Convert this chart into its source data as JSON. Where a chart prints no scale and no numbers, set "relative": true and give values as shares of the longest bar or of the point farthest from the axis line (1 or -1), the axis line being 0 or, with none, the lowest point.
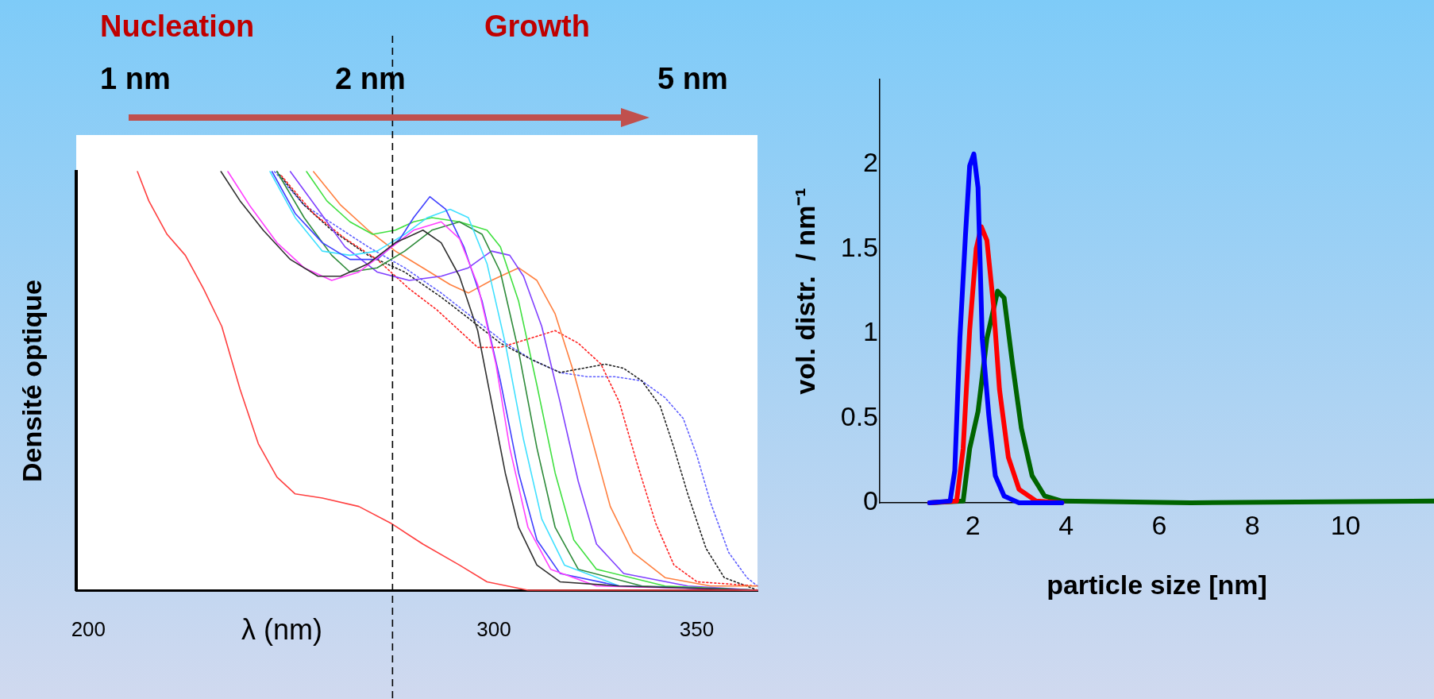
{
  "chart_data": [
    {
      "type": "line",
      "relative": true,
      "xlabel": "λ (nm)",
      "ylabel": "Densité optique",
      "xlim": [
        197,
        365
      ],
      "xticks": [
        200,
        300,
        350
      ],
      "grid": false,
      "legend": false,
      "marker": "none",
      "ref_lines": [
        {
          "axis": "x",
          "value": 275,
          "line_style": "dashed",
          "color": "#000000"
        }
      ],
      "annotations": [
        "Nucleation",
        "Growth",
        "1 nm",
        "2 nm",
        "5 nm"
      ],
      "series": [
        {
          "color": "#ff4040",
          "x": [
            212.1,
            214.9,
            219.4,
            223.9,
            228.4,
            232.9,
            237.4,
            241.9,
            246.5,
            251.0,
            257.7,
            266.7,
            274.6,
            282.5,
            291.5,
            298.3,
            308.4,
            365
          ],
          "values": [
            1.0,
            0.93,
            0.85,
            0.8,
            0.72,
            0.63,
            0.48,
            0.35,
            0.27,
            0.23,
            0.22,
            0.2,
            0.16,
            0.11,
            0.06,
            0.02,
            0.0,
            0.0
          ]
        },
        {
          "color": "#303030",
          "x": [
            232.7,
            237.4,
            243.1,
            249.8,
            256.6,
            262.2,
            269.0,
            275.7,
            282.5,
            287.0,
            291.5,
            296.0,
            299.4,
            302.8,
            306.1,
            310.6,
            316.3,
            330.9,
            365
          ],
          "values": [
            1.0,
            0.93,
            0.86,
            0.79,
            0.75,
            0.75,
            0.78,
            0.83,
            0.86,
            0.83,
            0.75,
            0.62,
            0.45,
            0.28,
            0.15,
            0.06,
            0.02,
            0.01,
            0.0
          ]
        },
        {
          "color": "#ff40ff",
          "x": [
            234.4,
            239.7,
            246.5,
            253.2,
            260.0,
            266.7,
            273.5,
            280.2,
            287.0,
            291.5,
            296.0,
            300.5,
            303.9,
            308.4,
            314.0,
            325.3,
            365
          ],
          "values": [
            1.0,
            0.92,
            0.83,
            0.77,
            0.74,
            0.76,
            0.81,
            0.86,
            0.88,
            0.84,
            0.73,
            0.54,
            0.34,
            0.15,
            0.05,
            0.01,
            0.0
          ]
        },
        {
          "color": "#4040ff",
          "x": [
            245.3,
            251.0,
            257.7,
            264.5,
            271.2,
            276.9,
            280.2,
            284.2,
            288.1,
            292.6,
            297.1,
            301.6,
            306.1,
            310.6,
            316.3,
            330.9,
            365
          ],
          "values": [
            1.0,
            0.9,
            0.83,
            0.79,
            0.79,
            0.84,
            0.89,
            0.94,
            0.91,
            0.82,
            0.69,
            0.5,
            0.28,
            0.12,
            0.04,
            0.01,
            0.0
          ]
        },
        {
          "color": "#40e0ff",
          "x": [
            244.8,
            251.0,
            257.7,
            264.5,
            271.2,
            278.0,
            283.6,
            289.2,
            293.7,
            298.3,
            302.8,
            307.3,
            311.8,
            317.4,
            330.9,
            365
          ],
          "values": [
            1.0,
            0.89,
            0.81,
            0.8,
            0.81,
            0.85,
            0.89,
            0.91,
            0.89,
            0.78,
            0.59,
            0.36,
            0.17,
            0.06,
            0.01,
            0.0
          ]
        },
        {
          "color": "#2e8b3a",
          "x": [
            246.5,
            253.2,
            260.0,
            264.5,
            271.2,
            278.0,
            284.7,
            291.5,
            297.1,
            301.6,
            306.1,
            310.6,
            315.1,
            320.8,
            336.5,
            365
          ],
          "values": [
            1.0,
            0.89,
            0.8,
            0.76,
            0.77,
            0.81,
            0.86,
            0.88,
            0.85,
            0.76,
            0.57,
            0.34,
            0.15,
            0.05,
            0.01,
            0.0
          ]
        },
        {
          "color": "#40e040",
          "x": [
            253.8,
            258.8,
            264.5,
            270.1,
            275.7,
            280.2,
            284.7,
            291.5,
            298.3,
            301.6,
            306.1,
            310.6,
            315.1,
            319.7,
            325.3,
            342.2,
            365
          ],
          "values": [
            1.0,
            0.93,
            0.88,
            0.85,
            0.86,
            0.88,
            0.89,
            0.88,
            0.86,
            0.82,
            0.69,
            0.49,
            0.28,
            0.12,
            0.05,
            0.01,
            0.0
          ]
        },
        {
          "color": "#8040ff",
          "x": [
            249.8,
            256.6,
            263.3,
            271.2,
            279.1,
            287.0,
            293.7,
            299.4,
            303.9,
            307.3,
            311.8,
            316.3,
            320.8,
            325.3,
            332.0,
            347.8,
            365
          ],
          "values": [
            1.0,
            0.91,
            0.82,
            0.76,
            0.74,
            0.75,
            0.77,
            0.81,
            0.8,
            0.75,
            0.63,
            0.45,
            0.26,
            0.11,
            0.04,
            0.01,
            0.0
          ]
        },
        {
          "color": "#ff8040",
          "x": [
            255.5,
            262.2,
            269.0,
            275.7,
            282.5,
            289.2,
            293.7,
            299.4,
            306.1,
            310.6,
            315.1,
            319.7,
            324.2,
            328.7,
            334.3,
            342.2,
            353.4,
            365
          ],
          "values": [
            1.0,
            0.92,
            0.86,
            0.81,
            0.77,
            0.73,
            0.71,
            0.74,
            0.77,
            0.74,
            0.66,
            0.52,
            0.36,
            0.2,
            0.09,
            0.03,
            0.01,
            0.01
          ]
        },
        {
          "color": "#ff2020",
          "line_style": "dotted",
          "x": [
            247.6,
            255.5,
            263.3,
            271.2,
            279.1,
            285.9,
            291.5,
            296.0,
            301.6,
            308.4,
            315.1,
            320.8,
            326.4,
            330.9,
            335.4,
            339.9,
            344.4,
            350.1,
            365
          ],
          "values": [
            0.99,
            0.9,
            0.84,
            0.79,
            0.72,
            0.67,
            0.62,
            0.58,
            0.58,
            0.6,
            0.62,
            0.59,
            0.54,
            0.45,
            0.3,
            0.16,
            0.06,
            0.02,
            0.01
          ]
        },
        {
          "color": "#202020",
          "line_style": "dotted",
          "x": [
            246.5,
            253.2,
            260.0,
            269.0,
            278.0,
            287.0,
            293.7,
            301.6,
            309.5,
            316.3,
            321.9,
            327.5,
            332.0,
            336.5,
            341.0,
            344.4,
            347.8,
            352.3,
            356.8,
            365
          ],
          "values": [
            1.0,
            0.92,
            0.86,
            0.8,
            0.76,
            0.7,
            0.65,
            0.59,
            0.55,
            0.52,
            0.53,
            0.54,
            0.53,
            0.5,
            0.44,
            0.34,
            0.23,
            0.1,
            0.03,
            0.0
          ]
        },
        {
          "color": "#6060ff",
          "line_style": "dotted",
          "x": [
            245.9,
            253.2,
            261.1,
            269.0,
            278.0,
            287.0,
            294.9,
            302.8,
            309.5,
            316.3,
            323.0,
            329.8,
            336.5,
            342.2,
            346.7,
            350.1,
            353.4,
            357.9,
            362.4,
            365
          ],
          "values": [
            1.0,
            0.92,
            0.87,
            0.82,
            0.77,
            0.71,
            0.65,
            0.59,
            0.55,
            0.52,
            0.51,
            0.51,
            0.5,
            0.46,
            0.41,
            0.32,
            0.21,
            0.09,
            0.03,
            0.01
          ]
        }
      ]
    },
    {
      "type": "line",
      "xlabel": "particle size [nm]",
      "ylabel": "vol. distr.  / nm⁻¹",
      "xlim": [
        0,
        11.9
      ],
      "xticks": [
        2,
        4,
        6,
        8,
        10
      ],
      "ylim": [
        0,
        2.5
      ],
      "yticks": [
        0,
        0.5,
        1,
        1.5,
        2
      ],
      "grid": false,
      "legend": false,
      "marker": "none",
      "series": [
        {
          "color": "#0000ff",
          "x": [
            1.07,
            1.51,
            1.61,
            1.72,
            1.84,
            1.93,
            2.02,
            2.11,
            2.2,
            2.34,
            2.48,
            2.67,
            2.99,
            3.91
          ],
          "values": [
            0,
            0.01,
            0.19,
            0.97,
            1.58,
            1.99,
            2.06,
            1.86,
            0.97,
            0.52,
            0.16,
            0.04,
            0,
            0
          ]
        },
        {
          "color": "#ff0000",
          "x": [
            1.07,
            1.65,
            1.79,
            1.93,
            2.07,
            2.18,
            2.3,
            2.44,
            2.57,
            2.76,
            2.99,
            3.36,
            3.91
          ],
          "values": [
            0,
            0.01,
            0.32,
            1.02,
            1.5,
            1.63,
            1.55,
            1.17,
            0.67,
            0.27,
            0.08,
            0.01,
            0
          ]
        },
        {
          "color": "#006400",
          "x": [
            1.07,
            1.79,
            1.93,
            2.11,
            2.3,
            2.53,
            2.67,
            2.85,
            3.04,
            3.27,
            3.54,
            3.91,
            6.68,
            11.9
          ],
          "values": [
            0,
            0.01,
            0.32,
            0.54,
            0.97,
            1.25,
            1.21,
            0.82,
            0.44,
            0.16,
            0.04,
            0.01,
            0,
            0.01
          ]
        }
      ]
    }
  ]
}
